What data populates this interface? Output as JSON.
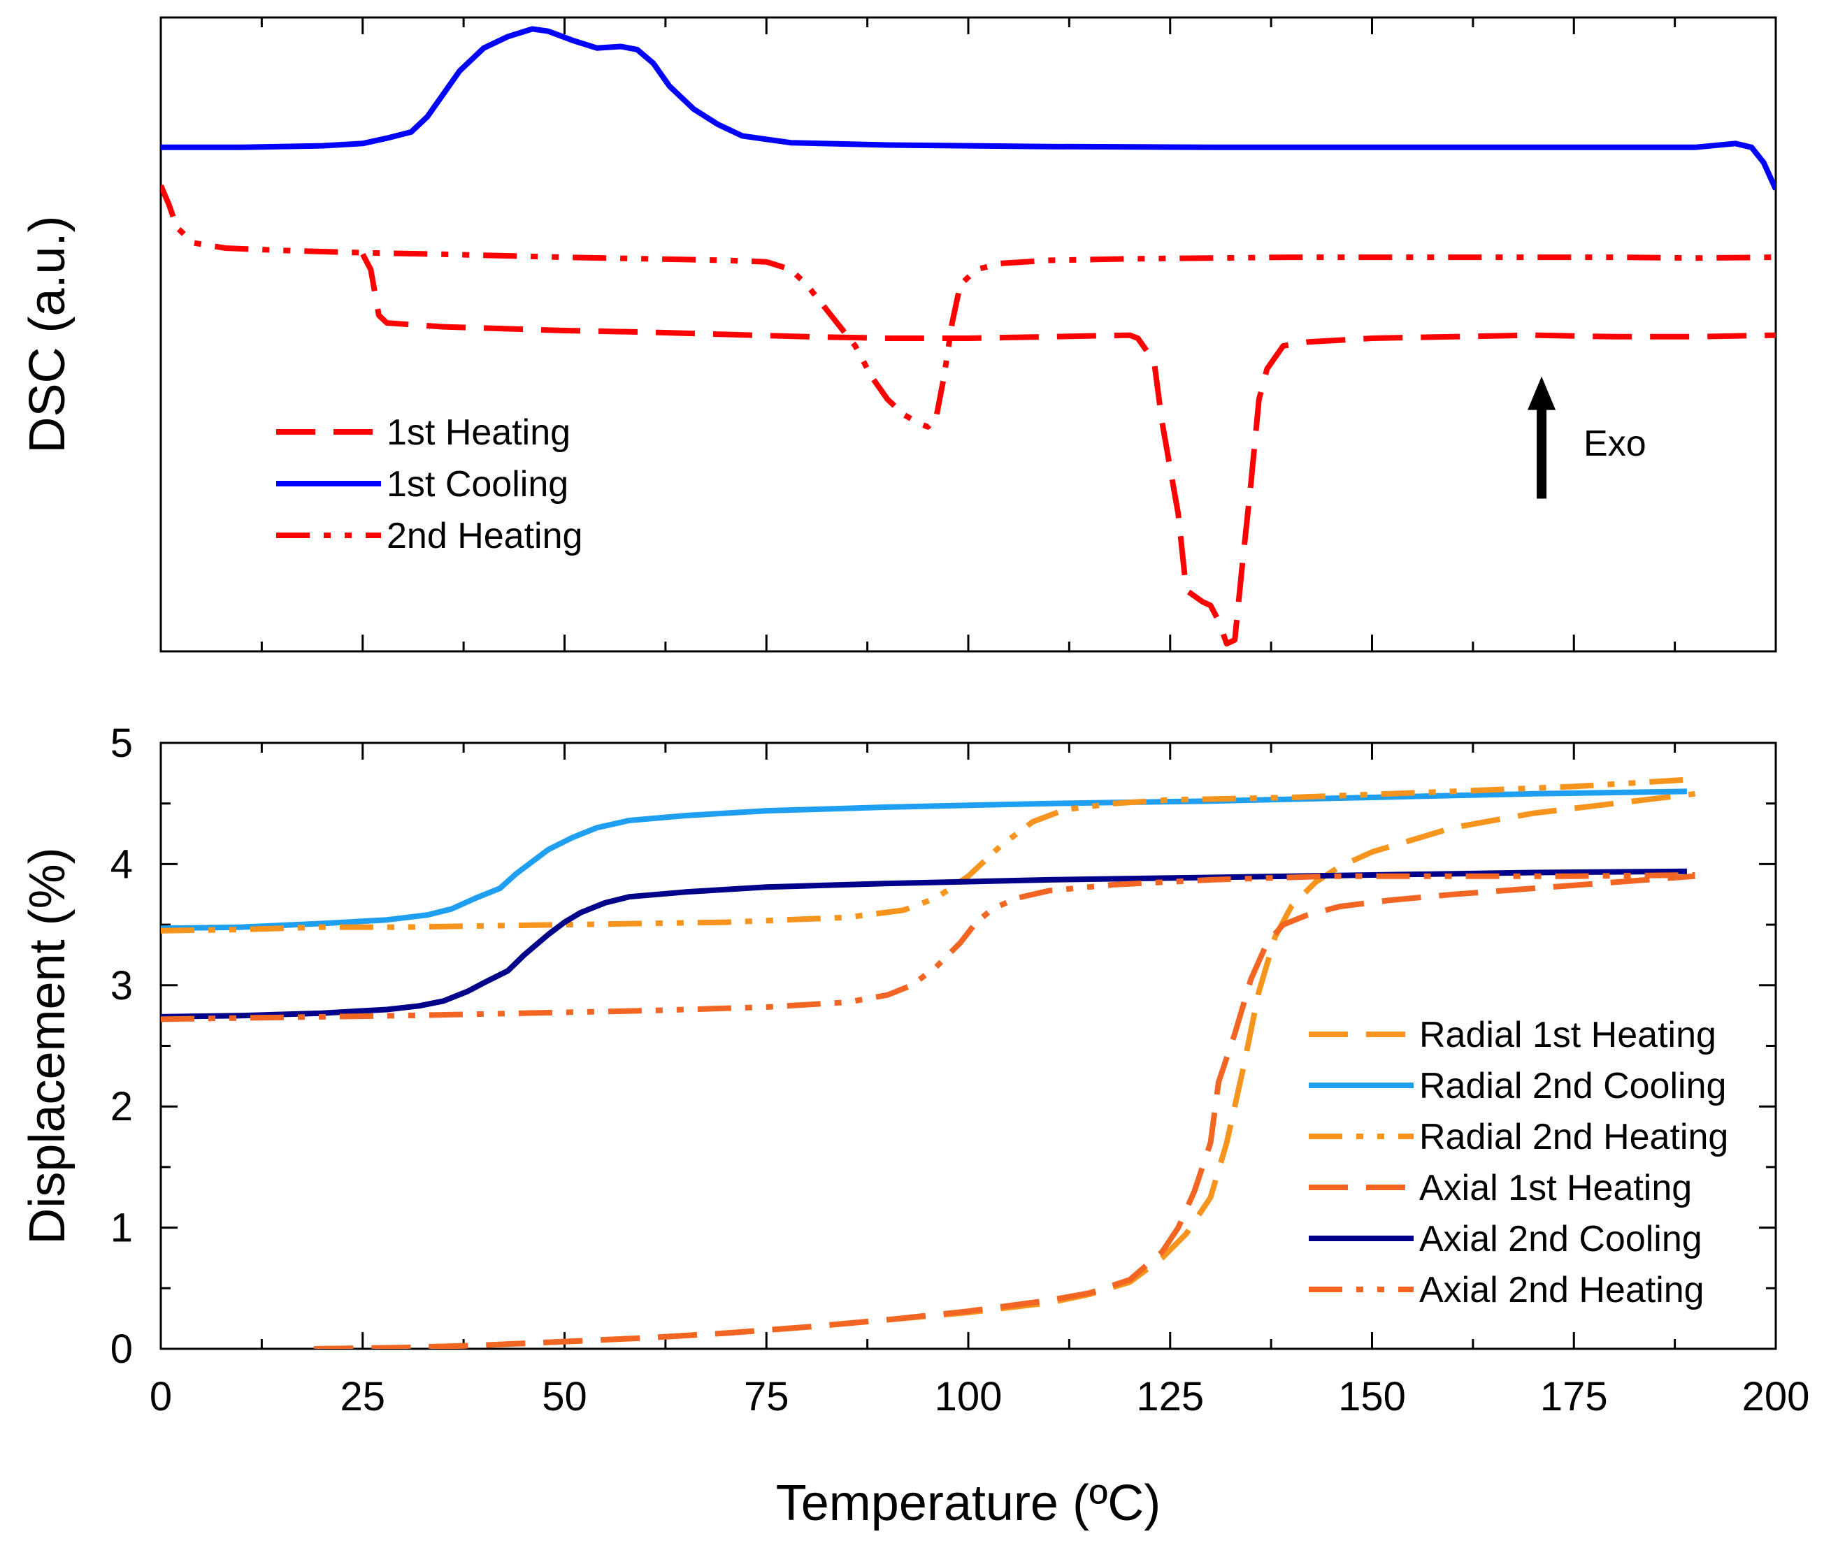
{
  "chart_data": [
    {
      "id": "dsc",
      "type": "line",
      "title": "",
      "xlabel": "",
      "ylabel": "DSC (a.u.)",
      "xlim": [
        0,
        200
      ],
      "ylim": [
        -6.6,
        1.7
      ],
      "y_ticks_labeled": false,
      "legend_position": "middle-left",
      "annotation": {
        "text": "Exo",
        "arrow_x": 171,
        "arrow_from_y": -4.6,
        "arrow_to_y": -3.0
      },
      "series": [
        {
          "name": "1st Heating",
          "color": "#ff0000",
          "style": "dash",
          "points": [
            [
              25,
              -1.4
            ],
            [
              26,
              -1.6
            ],
            [
              27,
              -2.2
            ],
            [
              28,
              -2.3
            ],
            [
              35,
              -2.35
            ],
            [
              50,
              -2.4
            ],
            [
              60,
              -2.42
            ],
            [
              70,
              -2.45
            ],
            [
              80,
              -2.48
            ],
            [
              90,
              -2.5
            ],
            [
              100,
              -2.5
            ],
            [
              110,
              -2.48
            ],
            [
              120,
              -2.46
            ],
            [
              121,
              -2.5
            ],
            [
              123,
              -2.8
            ],
            [
              124,
              -3.6
            ],
            [
              126,
              -4.8
            ],
            [
              127,
              -5.8
            ],
            [
              129,
              -5.95
            ],
            [
              130,
              -6.0
            ],
            [
              131,
              -6.2
            ],
            [
              132,
              -6.5
            ],
            [
              133,
              -6.45
            ],
            [
              134,
              -5.4
            ],
            [
              135,
              -4.4
            ],
            [
              136,
              -3.3
            ],
            [
              137,
              -2.9
            ],
            [
              139,
              -2.6
            ],
            [
              142,
              -2.55
            ],
            [
              150,
              -2.5
            ],
            [
              160,
              -2.48
            ],
            [
              170,
              -2.46
            ],
            [
              180,
              -2.48
            ],
            [
              190,
              -2.48
            ],
            [
              200,
              -2.46
            ]
          ]
        },
        {
          "name": "1st Cooling",
          "color": "#0000ff",
          "style": "solid",
          "points": [
            [
              0,
              0
            ],
            [
              10,
              0
            ],
            [
              20,
              0.02
            ],
            [
              25,
              0.05
            ],
            [
              28,
              0.12
            ],
            [
              31,
              0.2
            ],
            [
              33,
              0.4
            ],
            [
              35,
              0.7
            ],
            [
              37,
              1.0
            ],
            [
              40,
              1.3
            ],
            [
              43,
              1.45
            ],
            [
              46,
              1.55
            ],
            [
              48,
              1.52
            ],
            [
              51,
              1.4
            ],
            [
              54,
              1.3
            ],
            [
              57,
              1.32
            ],
            [
              59,
              1.28
            ],
            [
              61,
              1.1
            ],
            [
              63,
              0.8
            ],
            [
              66,
              0.5
            ],
            [
              69,
              0.3
            ],
            [
              72,
              0.15
            ],
            [
              78,
              0.06
            ],
            [
              90,
              0.03
            ],
            [
              110,
              0.01
            ],
            [
              130,
              0.0
            ],
            [
              150,
              0.0
            ],
            [
              170,
              0.0
            ],
            [
              190,
              0.0
            ],
            [
              195,
              0.05
            ],
            [
              197,
              0.0
            ],
            [
              198.5,
              -0.2
            ],
            [
              200,
              -0.55
            ]
          ]
        },
        {
          "name": "2nd Heating",
          "color": "#ff0000",
          "style": "dashdotdot",
          "points": [
            [
              0,
              -0.5
            ],
            [
              1,
              -0.75
            ],
            [
              2,
              -1.05
            ],
            [
              4,
              -1.25
            ],
            [
              8,
              -1.32
            ],
            [
              15,
              -1.35
            ],
            [
              25,
              -1.38
            ],
            [
              35,
              -1.4
            ],
            [
              50,
              -1.44
            ],
            [
              60,
              -1.46
            ],
            [
              70,
              -1.48
            ],
            [
              75,
              -1.5
            ],
            [
              78,
              -1.6
            ],
            [
              80,
              -1.8
            ],
            [
              83,
              -2.2
            ],
            [
              86,
              -2.6
            ],
            [
              88,
              -3.0
            ],
            [
              90,
              -3.3
            ],
            [
              92,
              -3.5
            ],
            [
              94,
              -3.62
            ],
            [
              95,
              -3.66
            ],
            [
              96,
              -3.55
            ],
            [
              97,
              -3.0
            ],
            [
              98,
              -2.3
            ],
            [
              99,
              -1.8
            ],
            [
              101,
              -1.6
            ],
            [
              104,
              -1.52
            ],
            [
              110,
              -1.48
            ],
            [
              120,
              -1.46
            ],
            [
              130,
              -1.45
            ],
            [
              140,
              -1.44
            ],
            [
              150,
              -1.44
            ],
            [
              160,
              -1.44
            ],
            [
              170,
              -1.44
            ],
            [
              180,
              -1.44
            ],
            [
              190,
              -1.45
            ],
            [
              200,
              -1.44
            ]
          ]
        }
      ]
    },
    {
      "id": "displacement",
      "type": "line",
      "title": "",
      "xlabel": "Temperature (ºC)",
      "ylabel": "Displacement (%)",
      "xlim": [
        0,
        200
      ],
      "ylim": [
        0,
        5
      ],
      "x_ticks": [
        0,
        25,
        50,
        75,
        100,
        125,
        150,
        175,
        200
      ],
      "y_ticks": [
        0,
        1,
        2,
        3,
        4,
        5
      ],
      "legend_position": "middle-right",
      "series": [
        {
          "name": "Radial 1st Heating",
          "color": "#f7941d",
          "style": "dash",
          "points": [
            [
              19,
              0
            ],
            [
              30,
              0.01
            ],
            [
              40,
              0.03
            ],
            [
              50,
              0.06
            ],
            [
              60,
              0.09
            ],
            [
              70,
              0.13
            ],
            [
              80,
              0.18
            ],
            [
              90,
              0.24
            ],
            [
              100,
              0.3
            ],
            [
              110,
              0.38
            ],
            [
              115,
              0.45
            ],
            [
              120,
              0.55
            ],
            [
              124,
              0.75
            ],
            [
              127,
              0.95
            ],
            [
              130,
              1.25
            ],
            [
              132,
              1.7
            ],
            [
              134,
              2.3
            ],
            [
              136,
              2.95
            ],
            [
              138,
              3.4
            ],
            [
              140,
              3.65
            ],
            [
              143,
              3.85
            ],
            [
              146,
              3.98
            ],
            [
              150,
              4.1
            ],
            [
              155,
              4.2
            ],
            [
              160,
              4.3
            ],
            [
              170,
              4.42
            ],
            [
              180,
              4.5
            ],
            [
              190,
              4.58
            ]
          ]
        },
        {
          "name": "Radial 2nd Cooling",
          "color": "#1e9ff2",
          "style": "solid",
          "points": [
            [
              0,
              3.47
            ],
            [
              10,
              3.48
            ],
            [
              20,
              3.51
            ],
            [
              28,
              3.54
            ],
            [
              33,
              3.58
            ],
            [
              36,
              3.63
            ],
            [
              39,
              3.72
            ],
            [
              42,
              3.8
            ],
            [
              44,
              3.92
            ],
            [
              46,
              4.02
            ],
            [
              48,
              4.12
            ],
            [
              51,
              4.22
            ],
            [
              54,
              4.3
            ],
            [
              58,
              4.36
            ],
            [
              65,
              4.4
            ],
            [
              75,
              4.44
            ],
            [
              90,
              4.47
            ],
            [
              110,
              4.5
            ],
            [
              130,
              4.52
            ],
            [
              150,
              4.55
            ],
            [
              170,
              4.58
            ],
            [
              189,
              4.6
            ]
          ]
        },
        {
          "name": "Radial 2nd Heating",
          "color": "#f7941d",
          "style": "dashdotdot",
          "points": [
            [
              0,
              3.45
            ],
            [
              10,
              3.46
            ],
            [
              20,
              3.48
            ],
            [
              30,
              3.48
            ],
            [
              50,
              3.5
            ],
            [
              70,
              3.52
            ],
            [
              85,
              3.56
            ],
            [
              92,
              3.62
            ],
            [
              96,
              3.72
            ],
            [
              100,
              3.9
            ],
            [
              104,
              4.15
            ],
            [
              108,
              4.35
            ],
            [
              112,
              4.45
            ],
            [
              118,
              4.5
            ],
            [
              125,
              4.53
            ],
            [
              140,
              4.55
            ],
            [
              160,
              4.6
            ],
            [
              175,
              4.64
            ],
            [
              190,
              4.7
            ]
          ]
        },
        {
          "name": "Axial 1st Heating",
          "color": "#f26522",
          "style": "dash",
          "points": [
            [
              19,
              0
            ],
            [
              30,
              0.01
            ],
            [
              40,
              0.03
            ],
            [
              50,
              0.06
            ],
            [
              60,
              0.09
            ],
            [
              70,
              0.13
            ],
            [
              80,
              0.18
            ],
            [
              90,
              0.24
            ],
            [
              100,
              0.31
            ],
            [
              110,
              0.4
            ],
            [
              115,
              0.46
            ],
            [
              120,
              0.57
            ],
            [
              124,
              0.8
            ],
            [
              126,
              1.0
            ],
            [
              128,
              1.3
            ],
            [
              130,
              1.7
            ],
            [
              131,
              2.2
            ],
            [
              133,
              2.6
            ],
            [
              135,
              3.05
            ],
            [
              137,
              3.35
            ],
            [
              139,
              3.5
            ],
            [
              142,
              3.58
            ],
            [
              146,
              3.65
            ],
            [
              152,
              3.7
            ],
            [
              160,
              3.75
            ],
            [
              170,
              3.8
            ],
            [
              180,
              3.85
            ],
            [
              190,
              3.9
            ]
          ]
        },
        {
          "name": "Axial 2nd Cooling",
          "color": "#00008b",
          "style": "solid",
          "points": [
            [
              0,
              2.74
            ],
            [
              10,
              2.75
            ],
            [
              20,
              2.77
            ],
            [
              28,
              2.8
            ],
            [
              32,
              2.83
            ],
            [
              35,
              2.87
            ],
            [
              38,
              2.95
            ],
            [
              40,
              3.02
            ],
            [
              43,
              3.12
            ],
            [
              45,
              3.25
            ],
            [
              48,
              3.42
            ],
            [
              50,
              3.52
            ],
            [
              52,
              3.6
            ],
            [
              55,
              3.68
            ],
            [
              58,
              3.73
            ],
            [
              65,
              3.77
            ],
            [
              75,
              3.81
            ],
            [
              90,
              3.84
            ],
            [
              110,
              3.87
            ],
            [
              130,
              3.89
            ],
            [
              150,
              3.91
            ],
            [
              170,
              3.93
            ],
            [
              189,
              3.94
            ]
          ]
        },
        {
          "name": "Axial 2nd Heating",
          "color": "#f26522",
          "style": "dashdotdot",
          "points": [
            [
              0,
              2.72
            ],
            [
              10,
              2.73
            ],
            [
              20,
              2.74
            ],
            [
              30,
              2.75
            ],
            [
              45,
              2.77
            ],
            [
              60,
              2.79
            ],
            [
              75,
              2.82
            ],
            [
              85,
              2.86
            ],
            [
              90,
              2.92
            ],
            [
              93,
              3.0
            ],
            [
              96,
              3.15
            ],
            [
              99,
              3.35
            ],
            [
              101,
              3.52
            ],
            [
              103,
              3.63
            ],
            [
              106,
              3.72
            ],
            [
              110,
              3.78
            ],
            [
              118,
              3.83
            ],
            [
              130,
              3.87
            ],
            [
              145,
              3.9
            ],
            [
              160,
              3.9
            ],
            [
              175,
              3.9
            ],
            [
              190,
              3.91
            ]
          ]
        }
      ]
    }
  ]
}
